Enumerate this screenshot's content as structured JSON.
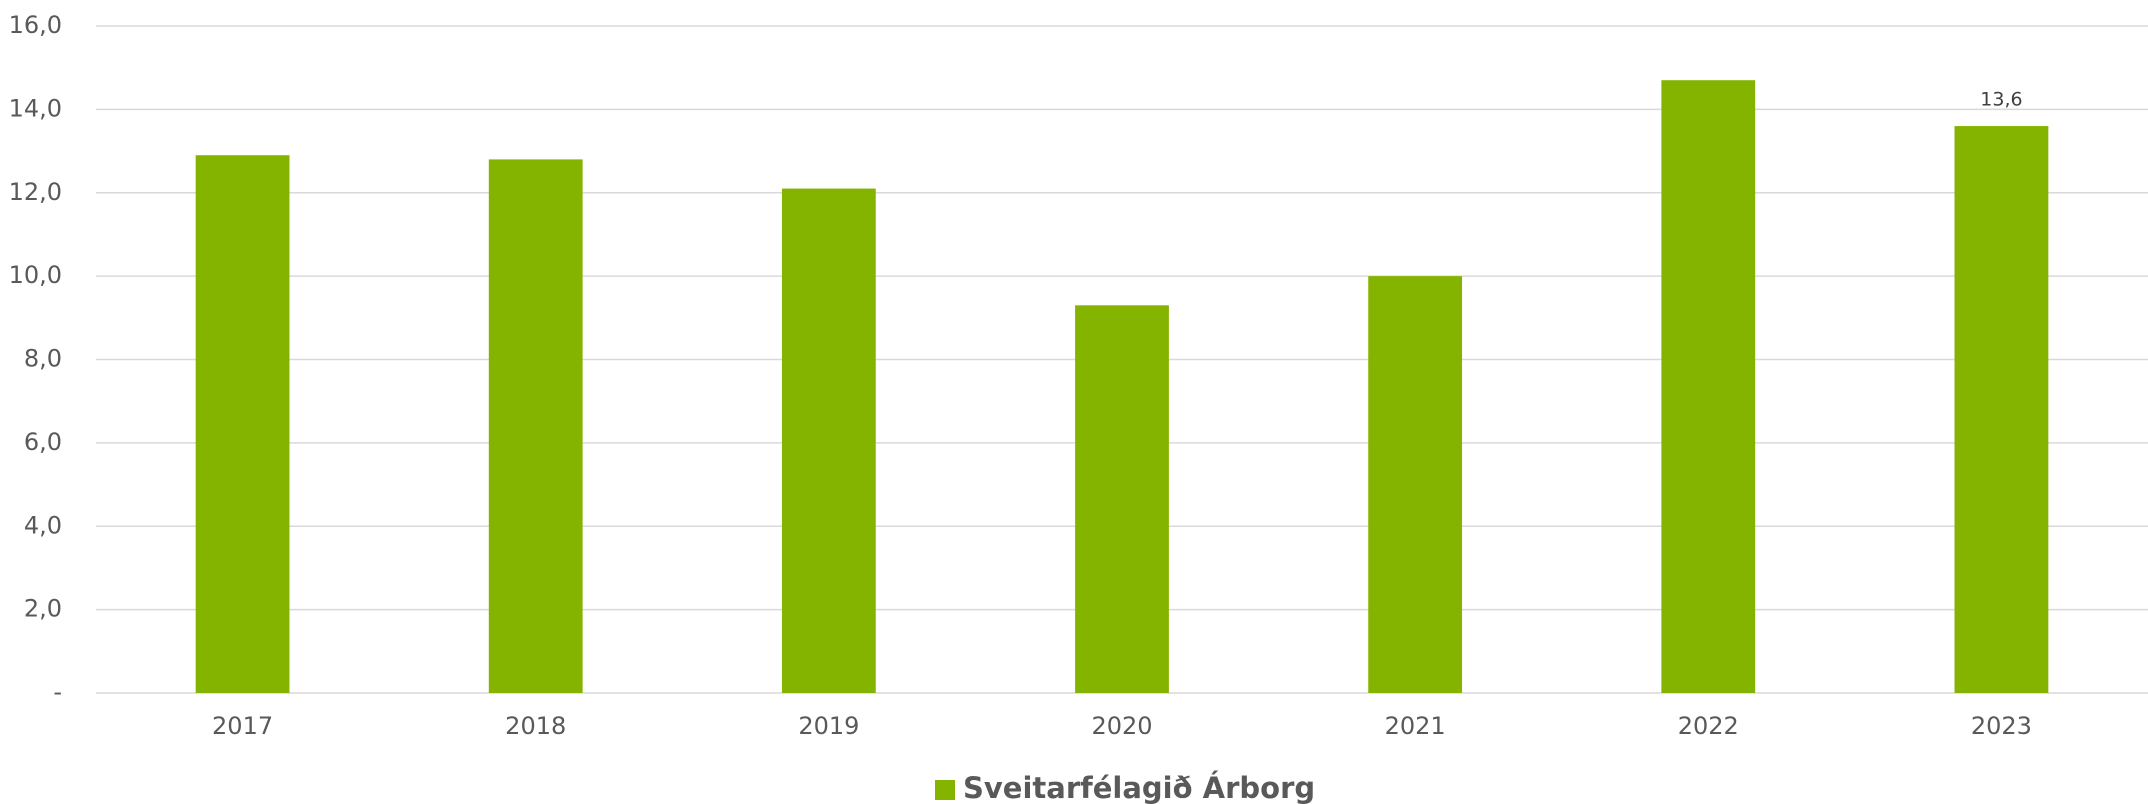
{
  "chart_data": {
    "type": "bar",
    "categories": [
      "2017",
      "2018",
      "2019",
      "2020",
      "2021",
      "2022",
      "2023"
    ],
    "series": [
      {
        "name": "Sveitarfélagið Árborg",
        "color": "#84b400",
        "values": [
          12.9,
          12.8,
          12.1,
          9.3,
          10.0,
          14.7,
          13.6
        ],
        "value_labels": [
          null,
          null,
          null,
          null,
          null,
          null,
          "13,6"
        ]
      }
    ],
    "ylim": [
      0,
      16
    ],
    "yticks": [
      {
        "value": 0,
        "label": "-"
      },
      {
        "value": 2,
        "label": "2,0"
      },
      {
        "value": 4,
        "label": "4,0"
      },
      {
        "value": 6,
        "label": "6,0"
      },
      {
        "value": 8,
        "label": "8,0"
      },
      {
        "value": 10,
        "label": "10,0"
      },
      {
        "value": 12,
        "label": "12,0"
      },
      {
        "value": 14,
        "label": "14,0"
      },
      {
        "value": 16,
        "label": "16,0"
      }
    ],
    "grid": true,
    "legend": "bottom"
  }
}
